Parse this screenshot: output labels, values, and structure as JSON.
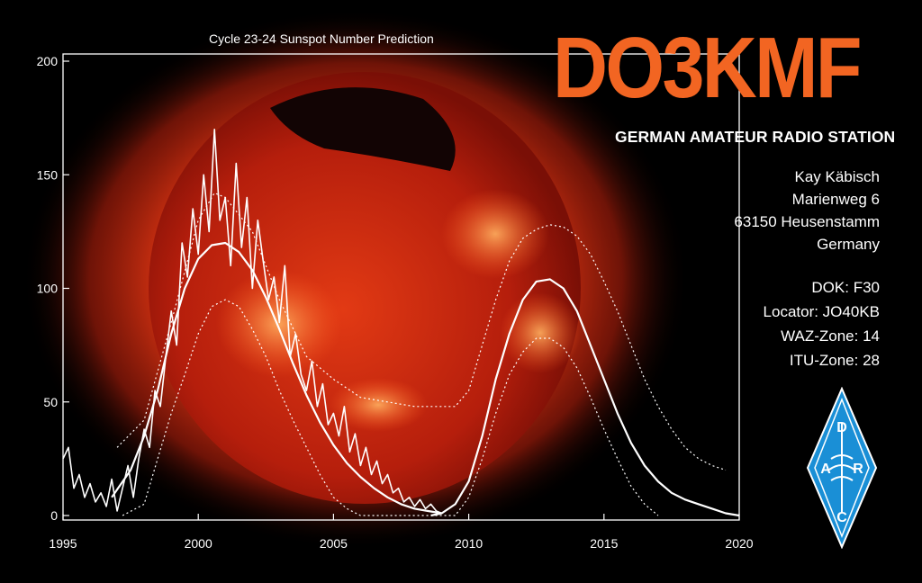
{
  "card": {
    "callsign": "DO3KMF",
    "subtitle": "GERMAN AMATEUR RADIO STATION",
    "address": [
      "Kay Käbisch",
      "Marienweg 6",
      "63150 Heusenstamm",
      "Germany"
    ],
    "info": [
      "DOK: F30",
      "Locator: JO40KB",
      "WAZ-Zone: 14",
      "ITU-Zone: 28"
    ],
    "logo": {
      "letters": [
        "D",
        "A",
        "R",
        "C"
      ],
      "color": "#1a8fd6"
    },
    "colors": {
      "accent": "#f26522",
      "background": "#000000",
      "sun": "#e8401a"
    }
  },
  "chart_data": {
    "type": "line",
    "title": "Cycle 23-24 Sunspot Number Prediction",
    "xlabel": "",
    "ylabel": "",
    "xlim": [
      1995,
      2020
    ],
    "ylim": [
      0,
      200
    ],
    "xticks": [
      1995,
      2000,
      2005,
      2010,
      2015,
      2020
    ],
    "yticks": [
      0,
      50,
      100,
      150,
      200
    ],
    "grid": false,
    "series": [
      {
        "style": "observed-monthly",
        "x": [
          1995.0,
          1995.2,
          1995.4,
          1995.6,
          1995.8,
          1996.0,
          1996.2,
          1996.4,
          1996.6,
          1996.8,
          1997.0,
          1997.2,
          1997.4,
          1997.6,
          1997.8,
          1998.0,
          1998.2,
          1998.4,
          1998.6,
          1998.8,
          1999.0,
          1999.2,
          1999.4,
          1999.6,
          1999.8,
          2000.0,
          2000.2,
          2000.4,
          2000.6,
          2000.8,
          2001.0,
          2001.2,
          2001.4,
          2001.6,
          2001.8,
          2002.0,
          2002.2,
          2002.4,
          2002.6,
          2002.8,
          2003.0,
          2003.2,
          2003.4,
          2003.6,
          2003.8,
          2004.0,
          2004.2,
          2004.4,
          2004.6,
          2004.8,
          2005.0,
          2005.2,
          2005.4,
          2005.6,
          2005.8,
          2006.0,
          2006.2,
          2006.4,
          2006.6,
          2006.8,
          2007.0,
          2007.2,
          2007.4,
          2007.6,
          2007.8,
          2008.0,
          2008.2,
          2008.4,
          2008.6,
          2008.8,
          2009.0
        ],
        "y": [
          25,
          30,
          12,
          18,
          8,
          14,
          6,
          10,
          4,
          16,
          2,
          12,
          22,
          8,
          25,
          38,
          30,
          55,
          48,
          70,
          90,
          75,
          120,
          105,
          135,
          115,
          150,
          125,
          170,
          130,
          140,
          110,
          155,
          118,
          140,
          100,
          130,
          112,
          95,
          105,
          85,
          110,
          70,
          80,
          62,
          55,
          68,
          48,
          58,
          40,
          45,
          35,
          48,
          28,
          36,
          22,
          30,
          18,
          24,
          14,
          18,
          10,
          12,
          6,
          8,
          4,
          7,
          3,
          5,
          2,
          1
        ]
      },
      {
        "style": "smoothed",
        "x": [
          1996.8,
          1997.5,
          1998.0,
          1998.5,
          1999.0,
          1999.5,
          2000.0,
          2000.5,
          2001.0,
          2001.5,
          2002.0,
          2002.5,
          2003.0,
          2003.5,
          2004.0,
          2004.5,
          2005.0,
          2005.5,
          2006.0,
          2006.5,
          2007.0,
          2007.5,
          2008.0,
          2008.5,
          2009.0
        ],
        "y": [
          8,
          20,
          35,
          55,
          80,
          100,
          113,
          119,
          120,
          116,
          108,
          96,
          82,
          67,
          53,
          41,
          31,
          23,
          17,
          12,
          8,
          5,
          3,
          2,
          1
        ]
      },
      {
        "style": "prediction-upper",
        "x": [
          1997.0,
          1998.0,
          1999.0,
          2000.0,
          2000.6,
          2001.0,
          2002.0,
          2003.0,
          2004.0,
          2005.0,
          2006.0,
          2007.0,
          2008.0,
          2009.0,
          2009.5,
          2010.0,
          2010.5,
          2011.0,
          2011.5,
          2012.0,
          2012.5,
          2013.0,
          2013.5,
          2014.0,
          2014.5,
          2015.0,
          2015.5,
          2016.0,
          2016.5,
          2017.0,
          2017.5,
          2018.0,
          2018.5,
          2019.0,
          2019.5
        ],
        "y": [
          30,
          42,
          85,
          130,
          142,
          140,
          125,
          95,
          70,
          60,
          52,
          50,
          48,
          48,
          48,
          55,
          75,
          95,
          112,
          122,
          126,
          128,
          127,
          123,
          115,
          103,
          90,
          75,
          60,
          48,
          38,
          30,
          25,
          22,
          20
        ]
      },
      {
        "style": "prediction-center",
        "x": [
          2008.6,
          2009.0,
          2009.5,
          2010.0,
          2010.5,
          2011.0,
          2011.5,
          2012.0,
          2012.5,
          2013.0,
          2013.5,
          2014.0,
          2014.5,
          2015.0,
          2015.5,
          2016.0,
          2016.5,
          2017.0,
          2017.5,
          2018.0,
          2018.5,
          2019.0,
          2019.5,
          2020.0
        ],
        "y": [
          0,
          1,
          5,
          15,
          35,
          60,
          80,
          95,
          103,
          104,
          100,
          90,
          75,
          60,
          45,
          32,
          22,
          15,
          10,
          7,
          5,
          3,
          1,
          0
        ]
      },
      {
        "style": "prediction-lower",
        "x": [
          1997.2,
          1998.0,
          1998.5,
          1999.0,
          1999.5,
          2000.0,
          2000.5,
          2001.0,
          2001.5,
          2002.0,
          2002.5,
          2003.0,
          2003.5,
          2004.0,
          2004.5,
          2005.0,
          2005.5,
          2006.0,
          2006.5,
          2009.5,
          2010.0,
          2010.5,
          2011.0,
          2011.5,
          2012.0,
          2012.5,
          2013.0,
          2013.5,
          2014.0,
          2014.5,
          2015.0,
          2015.5,
          2016.0,
          2016.5,
          2017.0
        ],
        "y": [
          0,
          5,
          25,
          45,
          62,
          80,
          92,
          95,
          92,
          82,
          70,
          55,
          42,
          30,
          18,
          8,
          3,
          0,
          0,
          0,
          8,
          25,
          45,
          62,
          72,
          78,
          78,
          74,
          65,
          52,
          38,
          25,
          13,
          5,
          0
        ]
      }
    ]
  }
}
